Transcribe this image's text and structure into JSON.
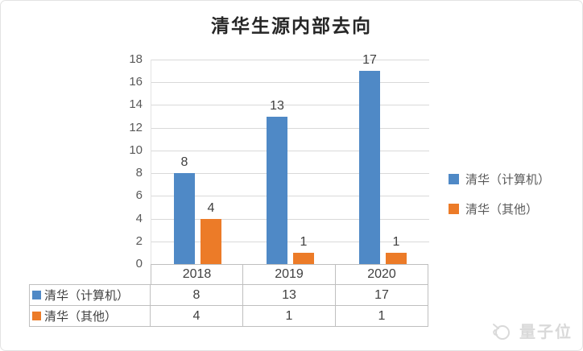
{
  "title": "清华生源内部去向",
  "chart_data": {
    "type": "bar",
    "title": "清华生源内部去向",
    "categories": [
      "2018",
      "2019",
      "2020"
    ],
    "series": [
      {
        "name": "清华（计算机）",
        "color": "#4f89c6",
        "values": [
          8,
          13,
          17
        ]
      },
      {
        "name": "清华（其他）",
        "color": "#ec7b28",
        "values": [
          4,
          1,
          1
        ]
      }
    ],
    "xlabel": "",
    "ylabel": "",
    "ylim": [
      0,
      18
    ],
    "ytick_step": 2,
    "grid": true,
    "gridline_color": "#d9d9d9",
    "table_border_color": "#bfbfbf",
    "legend_position": "right",
    "data_table_shown": true,
    "value_labels_shown": true
  },
  "watermark": {
    "text": "量子位",
    "color": "#d9d9d9"
  }
}
